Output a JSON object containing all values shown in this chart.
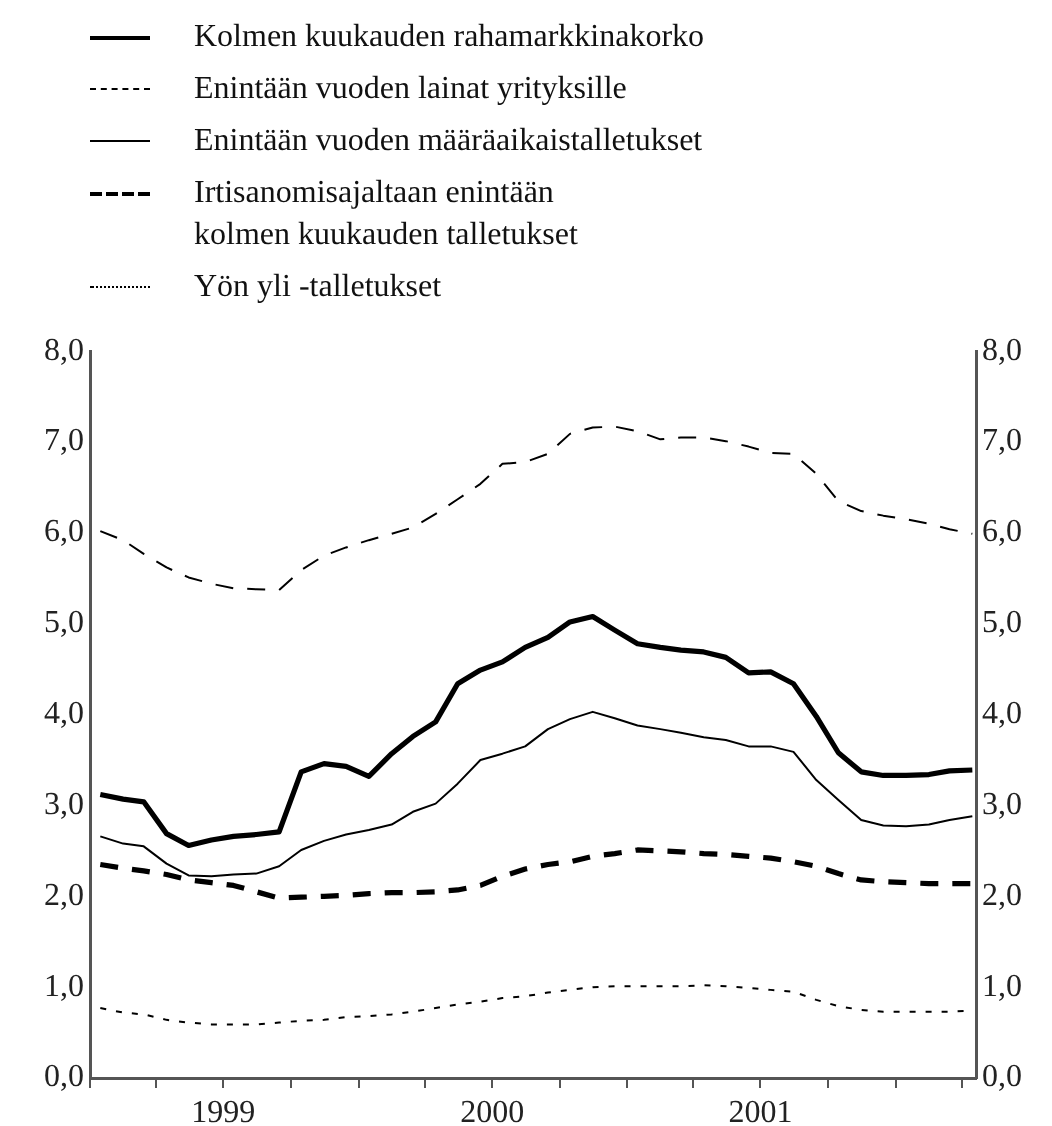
{
  "chart_data": {
    "type": "line",
    "x": [
      "1999-01-15",
      "1999-02-15",
      "1999-03-15",
      "1999-04-15",
      "1999-05-15",
      "1999-06-15",
      "1999-07-15",
      "1999-08-15",
      "1999-09-15",
      "1999-10-15",
      "1999-11-15",
      "1999-12-15",
      "2000-01-15",
      "2000-02-15",
      "2000-03-15",
      "2000-04-15",
      "2000-05-15",
      "2000-06-15",
      "2000-07-15",
      "2000-08-15",
      "2000-09-15",
      "2000-10-15",
      "2000-11-15",
      "2000-12-15",
      "2001-01-15",
      "2001-02-15",
      "2001-03-15",
      "2001-04-15",
      "2001-05-15",
      "2001-06-15",
      "2001-07-15",
      "2001-08-15",
      "2001-09-15",
      "2001-10-15",
      "2001-11-15",
      "2001-12-15",
      "2002-01-15",
      "2002-02-15",
      "2002-03-15",
      "2002-04-15"
    ],
    "series": [
      {
        "name": "Kolmen kuukauden rahamarkkinakorko",
        "color": "#000000",
        "line_style": "solid",
        "values": [
          3.12,
          3.07,
          3.04,
          2.69,
          2.56,
          2.62,
          2.66,
          2.68,
          2.71,
          3.37,
          3.46,
          3.43,
          3.32,
          3.57,
          3.76,
          3.92,
          4.34,
          4.49,
          4.58,
          4.74,
          4.85,
          5.02,
          5.08,
          4.93,
          4.78,
          4.74,
          4.71,
          4.69,
          4.63,
          4.46,
          4.47,
          4.34,
          3.98,
          3.58,
          3.37,
          3.33,
          3.33,
          3.34,
          3.38,
          3.39
        ]
      },
      {
        "name": "Enintään vuoden lainat yrityksille",
        "color": "#000000",
        "line_style": "dashed",
        "values": [
          6.02,
          5.92,
          5.77,
          5.62,
          5.51,
          5.44,
          5.39,
          5.38,
          5.37,
          5.59,
          5.75,
          5.84,
          5.92,
          5.99,
          6.06,
          6.21,
          6.37,
          6.54,
          6.76,
          6.78,
          6.87,
          7.09,
          7.16,
          7.17,
          7.12,
          7.03,
          7.05,
          7.05,
          7.01,
          6.95,
          6.88,
          6.87,
          6.65,
          6.35,
          6.24,
          6.19,
          6.15,
          6.1,
          6.04,
          5.99
        ]
      },
      {
        "name": "Enintään vuoden määräaikaistalletukset",
        "color": "#000000",
        "line_style": "solid",
        "values": [
          2.66,
          2.58,
          2.55,
          2.36,
          2.23,
          2.22,
          2.24,
          2.25,
          2.33,
          2.51,
          2.61,
          2.68,
          2.73,
          2.79,
          2.93,
          3.02,
          3.24,
          3.5,
          3.57,
          3.65,
          3.84,
          3.95,
          4.03,
          3.96,
          3.88,
          3.84,
          3.8,
          3.75,
          3.72,
          3.65,
          3.65,
          3.59,
          3.28,
          3.06,
          2.84,
          2.78,
          2.77,
          2.79,
          2.84,
          2.88
        ]
      },
      {
        "name": "Irtisanomisajaltaan enintään\nkolmen kuukauden talletukset",
        "color": "#000000",
        "line_style": "dashed",
        "values": [
          2.35,
          2.31,
          2.28,
          2.24,
          2.18,
          2.15,
          2.12,
          2.05,
          1.98,
          1.99,
          2.0,
          2.01,
          2.03,
          2.04,
          2.04,
          2.05,
          2.07,
          2.12,
          2.22,
          2.3,
          2.35,
          2.38,
          2.44,
          2.47,
          2.51,
          2.5,
          2.49,
          2.47,
          2.46,
          2.44,
          2.42,
          2.38,
          2.33,
          2.25,
          2.18,
          2.16,
          2.15,
          2.14,
          2.14,
          2.14
        ]
      },
      {
        "name": "Yön yli -talletukset",
        "color": "#000000",
        "line_style": "dotted",
        "values": [
          0.77,
          0.72,
          0.7,
          0.64,
          0.61,
          0.59,
          0.59,
          0.59,
          0.61,
          0.63,
          0.64,
          0.67,
          0.68,
          0.7,
          0.73,
          0.77,
          0.81,
          0.84,
          0.88,
          0.9,
          0.94,
          0.97,
          1.0,
          1.01,
          1.01,
          1.01,
          1.01,
          1.02,
          1.01,
          0.99,
          0.97,
          0.95,
          0.86,
          0.79,
          0.75,
          0.73,
          0.73,
          0.73,
          0.73,
          0.74
        ]
      }
    ],
    "xlim": [
      "1999-01-01",
      "2002-04-20"
    ],
    "xticks": [
      {
        "value": "1999-01-01",
        "label": null
      },
      {
        "value": "1999-04-01",
        "label": null
      },
      {
        "value": "1999-07-01",
        "label": "1999"
      },
      {
        "value": "1999-10-01",
        "label": null
      },
      {
        "value": "2000-01-01",
        "label": null
      },
      {
        "value": "2000-04-01",
        "label": null
      },
      {
        "value": "2000-07-01",
        "label": "2000"
      },
      {
        "value": "2000-10-01",
        "label": null
      },
      {
        "value": "2001-01-01",
        "label": null
      },
      {
        "value": "2001-04-01",
        "label": null
      },
      {
        "value": "2001-07-01",
        "label": "2001"
      },
      {
        "value": "2001-10-01",
        "label": null
      },
      {
        "value": "2002-01-01",
        "label": null
      },
      {
        "value": "2002-04-01",
        "label": null
      }
    ],
    "ylim": [
      0,
      8
    ],
    "yticks": [
      {
        "value": 0,
        "label": "0,0"
      },
      {
        "value": 1,
        "label": "1,0"
      },
      {
        "value": 2,
        "label": "2,0"
      },
      {
        "value": 3,
        "label": "3,0"
      },
      {
        "value": 4,
        "label": "4,0"
      },
      {
        "value": 5,
        "label": "5,0"
      },
      {
        "value": 6,
        "label": "6,0"
      },
      {
        "value": 7,
        "label": "7,0"
      },
      {
        "value": 8,
        "label": "8,0"
      }
    ],
    "y2lim": [
      0,
      8
    ],
    "y2ticks": [
      {
        "value": 0,
        "label": "0,0"
      },
      {
        "value": 1,
        "label": "1,0"
      },
      {
        "value": 2,
        "label": "2,0"
      },
      {
        "value": 3,
        "label": "3,0"
      },
      {
        "value": 4,
        "label": "4,0"
      },
      {
        "value": 5,
        "label": "5,0"
      },
      {
        "value": 6,
        "label": "6,0"
      },
      {
        "value": 7,
        "label": "7,0"
      },
      {
        "value": 8,
        "label": "8,0"
      }
    ],
    "grid": false,
    "legend": "top",
    "marker": "none"
  }
}
